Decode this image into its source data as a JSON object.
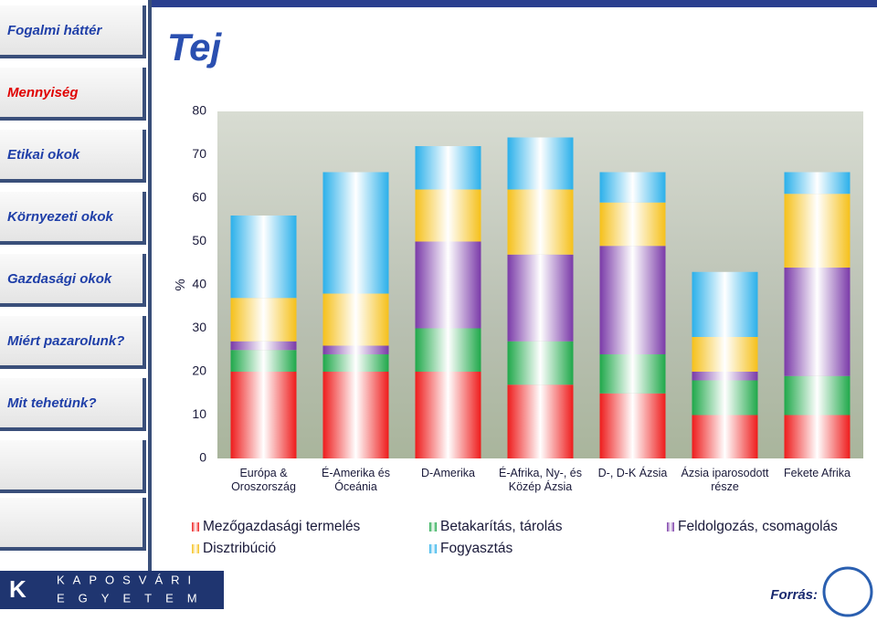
{
  "nav": [
    "Fogalmi háttér",
    "Mennyiség",
    "Etikai okok",
    "Környezeti okok",
    "Gazdasági okok",
    "Miért  pazarolunk?",
    "Mit tehetünk?"
  ],
  "footer": {
    "university_1": "KAPOSVÁRI",
    "university_2": "EGYETEM",
    "source": "Forrás:"
  },
  "chart_data": {
    "type": "stacked-bar",
    "title": "Tej",
    "ylabel": "%",
    "categories": [
      "Európa & Oroszország",
      "É-Amerika és Óceánia",
      "D-Amerika",
      "É-Afrika, Ny-, és Közép Ázsia",
      "D-, D-K Ázsia",
      "Ázsia iparosodott része",
      "Fekete  Afrika"
    ],
    "series": [
      {
        "name": "Mezőgazdasági termelés",
        "color": "#ee1c1c",
        "values": [
          20,
          20,
          20,
          17,
          15,
          10,
          10
        ]
      },
      {
        "name": "Betakarítás, tárolás",
        "color": "#1fa84a",
        "values": [
          5,
          4,
          10,
          10,
          9,
          8,
          9
        ]
      },
      {
        "name": "Feldolgozás, csomagolás",
        "color": "#7a3aa8",
        "values": [
          2,
          2,
          20,
          20,
          25,
          2,
          25
        ]
      },
      {
        "name": "Disztribúció",
        "color": "#f5c01a",
        "values": [
          10,
          12,
          12,
          15,
          10,
          8,
          17
        ]
      },
      {
        "name": "Fogyasztás",
        "color": "#2bb0ea",
        "values": [
          19,
          28,
          10,
          12,
          7,
          15,
          5
        ]
      }
    ],
    "ylim": [
      0,
      80
    ],
    "yticks": [
      0,
      10,
      20,
      30,
      40,
      50,
      60,
      70,
      80
    ],
    "legend": "bottom"
  }
}
